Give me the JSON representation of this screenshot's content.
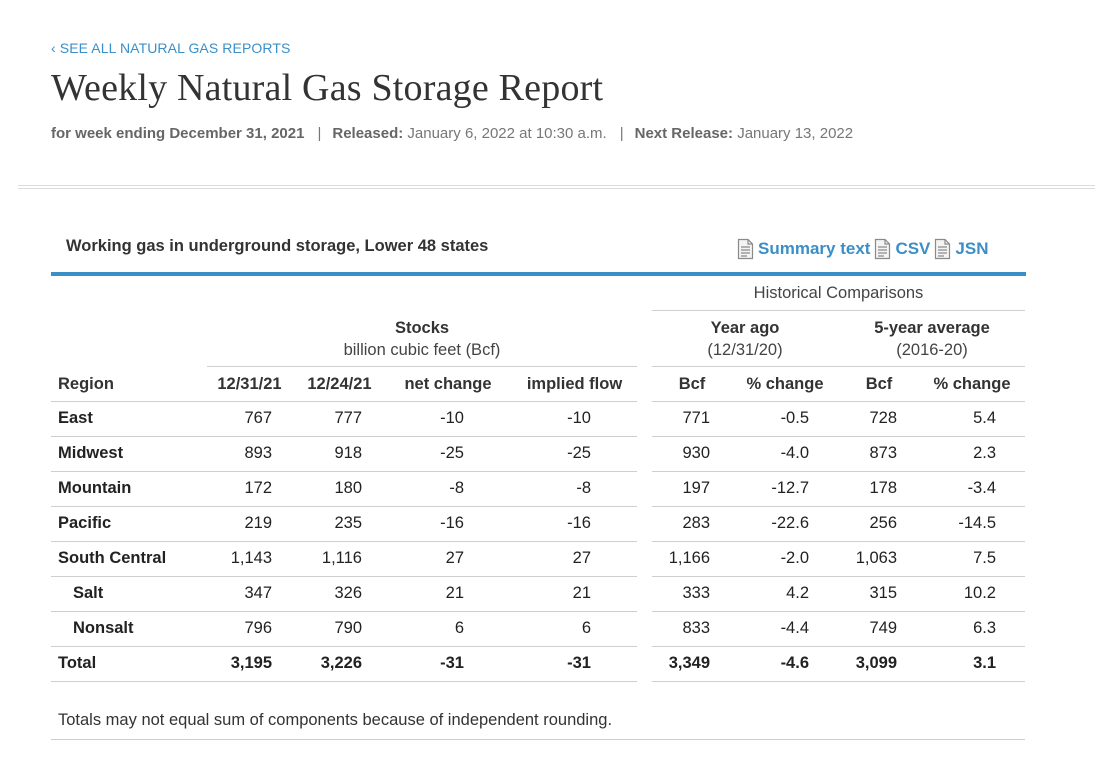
{
  "nav": {
    "back_link": "‹ SEE ALL NATURAL GAS REPORTS"
  },
  "header": {
    "title": "Weekly Natural Gas Storage Report",
    "week_ending": "for week ending December 31, 2021",
    "released_label": "Released:",
    "released_value": "January 6, 2022 at 10:30 a.m.",
    "next_label": "Next Release:",
    "next_value": "January 13, 2022",
    "separator": "|"
  },
  "panel": {
    "title": "Working gas in underground storage, Lower 48 states",
    "downloads": [
      {
        "label": "Summary text",
        "icon": "document-icon"
      },
      {
        "label": "CSV",
        "icon": "document-icon"
      },
      {
        "label": "JSN",
        "icon": "document-icon"
      }
    ]
  },
  "table": {
    "historical_header": "Historical Comparisons",
    "stocks_header": "Stocks",
    "stocks_sub": "billion cubic feet (Bcf)",
    "year_ago_header": "Year ago",
    "year_ago_sub": "(12/31/20)",
    "five_year_header": "5-year average",
    "five_year_sub": "(2016-20)",
    "columns": [
      "Region",
      "12/31/21",
      "12/24/21",
      "net change",
      "implied flow",
      "Bcf",
      "% change",
      "Bcf",
      "% change"
    ],
    "rows": [
      {
        "region": "East",
        "indent": false,
        "bold": false,
        "values": [
          "767",
          "777",
          "-10",
          "-10",
          "771",
          "-0.5",
          "728",
          "5.4"
        ]
      },
      {
        "region": "Midwest",
        "indent": false,
        "bold": false,
        "values": [
          "893",
          "918",
          "-25",
          "-25",
          "930",
          "-4.0",
          "873",
          "2.3"
        ]
      },
      {
        "region": "Mountain",
        "indent": false,
        "bold": false,
        "values": [
          "172",
          "180",
          "-8",
          "-8",
          "197",
          "-12.7",
          "178",
          "-3.4"
        ]
      },
      {
        "region": "Pacific",
        "indent": false,
        "bold": false,
        "values": [
          "219",
          "235",
          "-16",
          "-16",
          "283",
          "-22.6",
          "256",
          "-14.5"
        ]
      },
      {
        "region": "South Central",
        "indent": false,
        "bold": false,
        "values": [
          "1,143",
          "1,116",
          "27",
          "27",
          "1,166",
          "-2.0",
          "1,063",
          "7.5"
        ]
      },
      {
        "region": "Salt",
        "indent": true,
        "bold": false,
        "values": [
          "347",
          "326",
          "21",
          "21",
          "333",
          "4.2",
          "315",
          "10.2"
        ]
      },
      {
        "region": "Nonsalt",
        "indent": true,
        "bold": false,
        "values": [
          "796",
          "790",
          "6",
          "6",
          "833",
          "-4.4",
          "749",
          "6.3"
        ]
      },
      {
        "region": "Total",
        "indent": false,
        "bold": true,
        "values": [
          "3,195",
          "3,226",
          "-31",
          "-31",
          "3,349",
          "-4.6",
          "3,099",
          "3.1"
        ]
      }
    ],
    "footnote": "Totals may not equal sum of components because of independent rounding."
  }
}
